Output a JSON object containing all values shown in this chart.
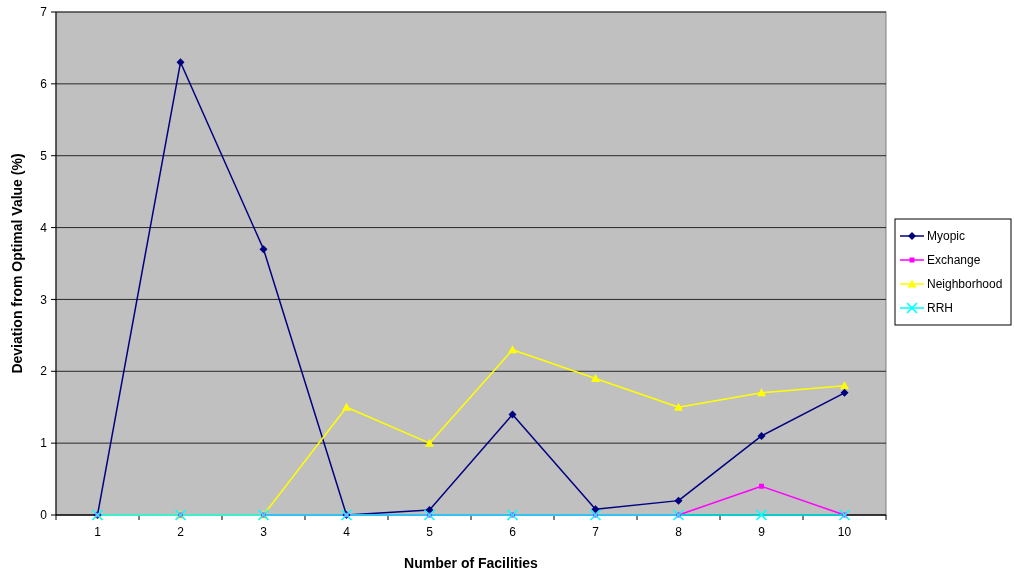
{
  "chart_data": {
    "type": "line",
    "xlabel": "Number of Facilities",
    "ylabel": "Deviation from Optimal Value (%)",
    "categories": [
      "1",
      "2",
      "3",
      "4",
      "5",
      "6",
      "7",
      "8",
      "9",
      "10"
    ],
    "series": [
      {
        "name": "Myopic",
        "color": "#000080",
        "marker": "diamond",
        "values": [
          0,
          6.3,
          3.7,
          0,
          0.07,
          1.4,
          0.08,
          0.2,
          1.1,
          1.7
        ]
      },
      {
        "name": "Exchange",
        "color": "#ff00ff",
        "marker": "square",
        "values": [
          0,
          0,
          0,
          0,
          0,
          0,
          0,
          0,
          0.4,
          0
        ]
      },
      {
        "name": "Neighborhood",
        "color": "#ffff00",
        "marker": "triangle",
        "values": [
          0,
          0,
          0,
          1.5,
          1.0,
          2.3,
          1.9,
          1.5,
          1.7,
          1.8
        ]
      },
      {
        "name": "RRH",
        "color": "#00ffff",
        "marker": "cross",
        "values": [
          0,
          0,
          0,
          0,
          0,
          0,
          0,
          0,
          0,
          0
        ]
      }
    ],
    "ylim": [
      0,
      7
    ],
    "yticks": [
      0,
      1,
      2,
      3,
      4,
      5,
      6,
      7
    ],
    "grid": "y",
    "legend": "right"
  }
}
